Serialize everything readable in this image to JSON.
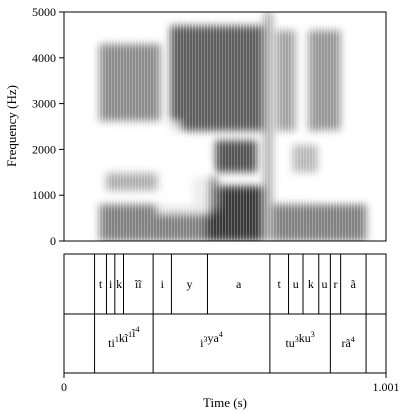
{
  "chart_data": {
    "type": "heatmap",
    "subtype": "spectrogram-with-textgrid",
    "xlabel": "Time (s)",
    "ylabel": "Frequency (Hz)",
    "xlim": [
      0,
      1.001
    ],
    "ylim": [
      0,
      5000
    ],
    "x_tick_labels": [
      "0",
      "1.001"
    ],
    "y_tick_labels": [
      "0",
      "1000",
      "2000",
      "3000",
      "4000",
      "5000"
    ],
    "y_ticks": [
      0,
      1000,
      2000,
      3000,
      4000,
      5000
    ],
    "grid": false,
    "colormap": "grayscale (dark = high energy)",
    "segments": [
      {
        "label": "t",
        "start": 0.095,
        "end": 0.132
      },
      {
        "label": "i",
        "start": 0.132,
        "end": 0.158
      },
      {
        "label": "k",
        "start": 0.158,
        "end": 0.185
      },
      {
        "label": "ĩĩ",
        "start": 0.185,
        "end": 0.277
      },
      {
        "label": "i",
        "start": 0.277,
        "end": 0.334
      },
      {
        "label": "y",
        "start": 0.334,
        "end": 0.446
      },
      {
        "label": "a",
        "start": 0.446,
        "end": 0.64
      },
      {
        "label": "t",
        "start": 0.64,
        "end": 0.698
      },
      {
        "label": "u",
        "start": 0.698,
        "end": 0.743
      },
      {
        "label": "k",
        "start": 0.743,
        "end": 0.792
      },
      {
        "label": "u",
        "start": 0.792,
        "end": 0.828
      },
      {
        "label": "r",
        "start": 0.828,
        "end": 0.86
      },
      {
        "label": "ã",
        "start": 0.86,
        "end": 0.939
      }
    ],
    "syllables": [
      {
        "base": [
          "ti",
          "kĩ",
          "ĩ"
        ],
        "tones": [
          "1",
          "1",
          "4"
        ],
        "start": 0.095,
        "end": 0.277
      },
      {
        "base": [
          "i",
          "ya"
        ],
        "tones": [
          "3",
          "4"
        ],
        "start": 0.277,
        "end": 0.64
      },
      {
        "base": [
          "tu",
          "ku"
        ],
        "tones": [
          "3",
          "3"
        ],
        "start": 0.64,
        "end": 0.828
      },
      {
        "base": [
          "rã"
        ],
        "tones": [
          "4"
        ],
        "start": 0.828,
        "end": 0.939
      }
    ],
    "energy_regions": [
      {
        "t0": 0.11,
        "t1": 0.44,
        "f0": 0,
        "f1": 800,
        "level": 0.55
      },
      {
        "t0": 0.11,
        "t1": 0.3,
        "f0": 2600,
        "f1": 4300,
        "level": 0.5
      },
      {
        "t0": 0.13,
        "t1": 0.3,
        "f0": 1100,
        "f1": 1500,
        "level": 0.35
      },
      {
        "t0": 0.33,
        "t1": 0.62,
        "f0": 2400,
        "f1": 4700,
        "level": 0.7
      },
      {
        "t0": 0.44,
        "t1": 0.62,
        "f0": 0,
        "f1": 1200,
        "level": 0.85
      },
      {
        "t0": 0.47,
        "t1": 0.6,
        "f0": 1500,
        "f1": 2200,
        "level": 0.75
      },
      {
        "t0": 0.4,
        "t1": 0.48,
        "f0": 700,
        "f1": 1400,
        "level": 0.5
      },
      {
        "t0": 0.65,
        "t1": 0.94,
        "f0": 0,
        "f1": 800,
        "level": 0.55
      },
      {
        "t0": 0.66,
        "t1": 0.72,
        "f0": 2400,
        "f1": 4600,
        "level": 0.4
      },
      {
        "t0": 0.76,
        "t1": 0.86,
        "f0": 2400,
        "f1": 4600,
        "level": 0.45
      },
      {
        "t0": 0.71,
        "t1": 0.79,
        "f0": 1500,
        "f1": 2100,
        "level": 0.3
      },
      {
        "t0": 0.62,
        "t1": 0.65,
        "f0": 0,
        "f1": 5000,
        "level": 0.35
      }
    ],
    "white_regions": [
      {
        "t0": 0.12,
        "t1": 0.36,
        "f0": 1500,
        "f1": 2600
      },
      {
        "t0": 0.29,
        "t1": 0.45,
        "f0": 600,
        "f1": 1600
      },
      {
        "t0": 0.8,
        "t1": 0.92,
        "f0": 1000,
        "f1": 2400
      }
    ]
  }
}
